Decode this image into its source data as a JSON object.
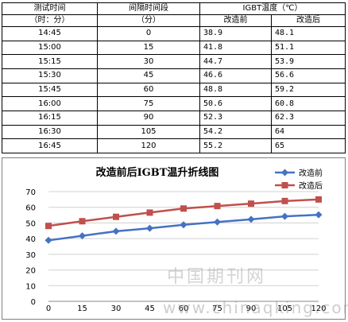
{
  "table": {
    "headers": {
      "time": "测试时间",
      "time_unit": "（时：分）",
      "interval": "间隔时间段",
      "interval_unit": "（分）",
      "temp": "IGBT温度（℃）",
      "before": "改造前",
      "after": "改造后"
    },
    "rows": [
      {
        "time": "14:45",
        "interval": "0",
        "before": "38.9",
        "after": "48.1"
      },
      {
        "time": "15:00",
        "interval": "15",
        "before": "41.8",
        "after": "51.1"
      },
      {
        "time": "15:15",
        "interval": "30",
        "before": "44.7",
        "after": "53.9"
      },
      {
        "time": "15:30",
        "interval": "45",
        "before": "46.6",
        "after": "56.6"
      },
      {
        "time": "15:45",
        "interval": "60",
        "before": "48.8",
        "after": "59.2"
      },
      {
        "time": "16:00",
        "interval": "75",
        "before": "50.6",
        "after": "60.8"
      },
      {
        "time": "16:15",
        "interval": "90",
        "before": "52.3",
        "after": "62.3"
      },
      {
        "time": "16:30",
        "interval": "105",
        "before": "54.2",
        "after": "64"
      },
      {
        "time": "16:45",
        "interval": "120",
        "before": "55.2",
        "after": "65"
      }
    ]
  },
  "chart_data": {
    "type": "line",
    "title": "改造前后IGBT温升折线图",
    "categories": [
      "0",
      "15",
      "30",
      "45",
      "60",
      "75",
      "90",
      "105",
      "120"
    ],
    "series": [
      {
        "name": "改造前",
        "values": [
          38.9,
          41.8,
          44.7,
          46.6,
          48.8,
          50.6,
          52.3,
          54.2,
          55.2
        ],
        "color": "#4472C4",
        "marker": "diamond"
      },
      {
        "name": "改造后",
        "values": [
          48.1,
          51.1,
          53.9,
          56.6,
          59.2,
          60.8,
          62.3,
          64,
          65
        ],
        "color": "#C0504D",
        "marker": "square"
      }
    ],
    "ylim": [
      0,
      70
    ],
    "yticks": [
      "0",
      "10",
      "20",
      "30",
      "40",
      "50",
      "60",
      "70"
    ],
    "xlabel": "",
    "ylabel": "",
    "grid": true,
    "legend_position": "top-right"
  },
  "watermark": {
    "text": "中国期刊网",
    "url": "www.chinaqking.com"
  }
}
